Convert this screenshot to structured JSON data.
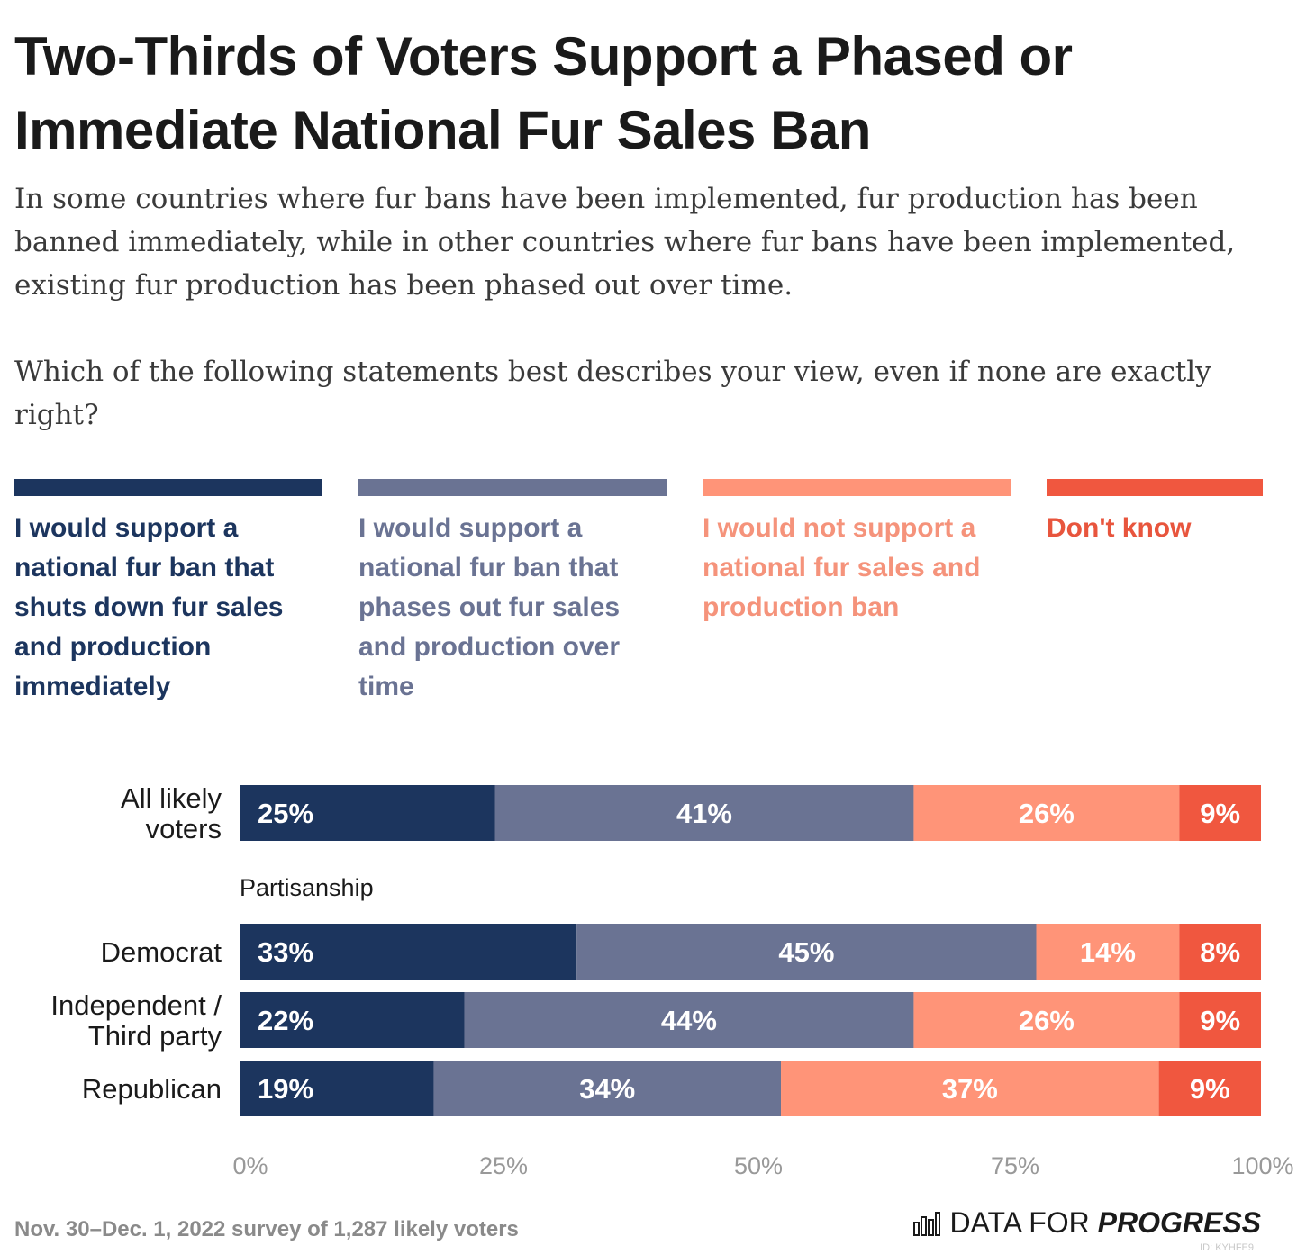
{
  "title": "Two-Thirds of Voters Support a Phased or Immediate National Fur Sales Ban",
  "subtitle_1": "In some countries where fur bans have been implemented, fur production has been banned immediately, while in other countries where fur bans have been implemented, existing fur production has been phased out over time.",
  "subtitle_2": "Which of the following statements best describes your view, even if none are exactly right?",
  "footnote": "Nov. 30–Dec. 1, 2022 survey of 1,287 likely voters",
  "brand": {
    "text": "DATA FOR ",
    "strong": "PROGRESS",
    "icon": "bar-chart-icon",
    "id": "ID: KYHFE9"
  },
  "chart_data": {
    "type": "bar",
    "orientation": "horizontal",
    "stacked": true,
    "categories": [
      "All likely voters",
      "Democrat",
      "Independent / Third party",
      "Republican"
    ],
    "group_label": "Partisanship",
    "series": [
      {
        "name": "I would support a national fur ban that shuts down fur sales and production immediately",
        "color": "#1c355e",
        "labelColor": "#1c355e",
        "values": [
          25,
          33,
          22,
          19
        ]
      },
      {
        "name": "I would support a national fur ban that phases out fur sales and production over time",
        "color": "#6a7393",
        "labelColor": "#6a7393",
        "values": [
          41,
          45,
          44,
          34
        ]
      },
      {
        "name": "I would not support a national fur sales and production ban",
        "color": "#ff9478",
        "labelColor": "#f5937b",
        "values": [
          26,
          14,
          26,
          37
        ]
      },
      {
        "name": "Don't know",
        "color": "#f0573f",
        "labelColor": "#e8553d",
        "values": [
          9,
          8,
          9,
          9
        ]
      }
    ],
    "xticks": [
      "0%",
      "25%",
      "50%",
      "75%",
      "100%"
    ],
    "xlim": [
      0,
      100
    ],
    "legend": "top"
  }
}
